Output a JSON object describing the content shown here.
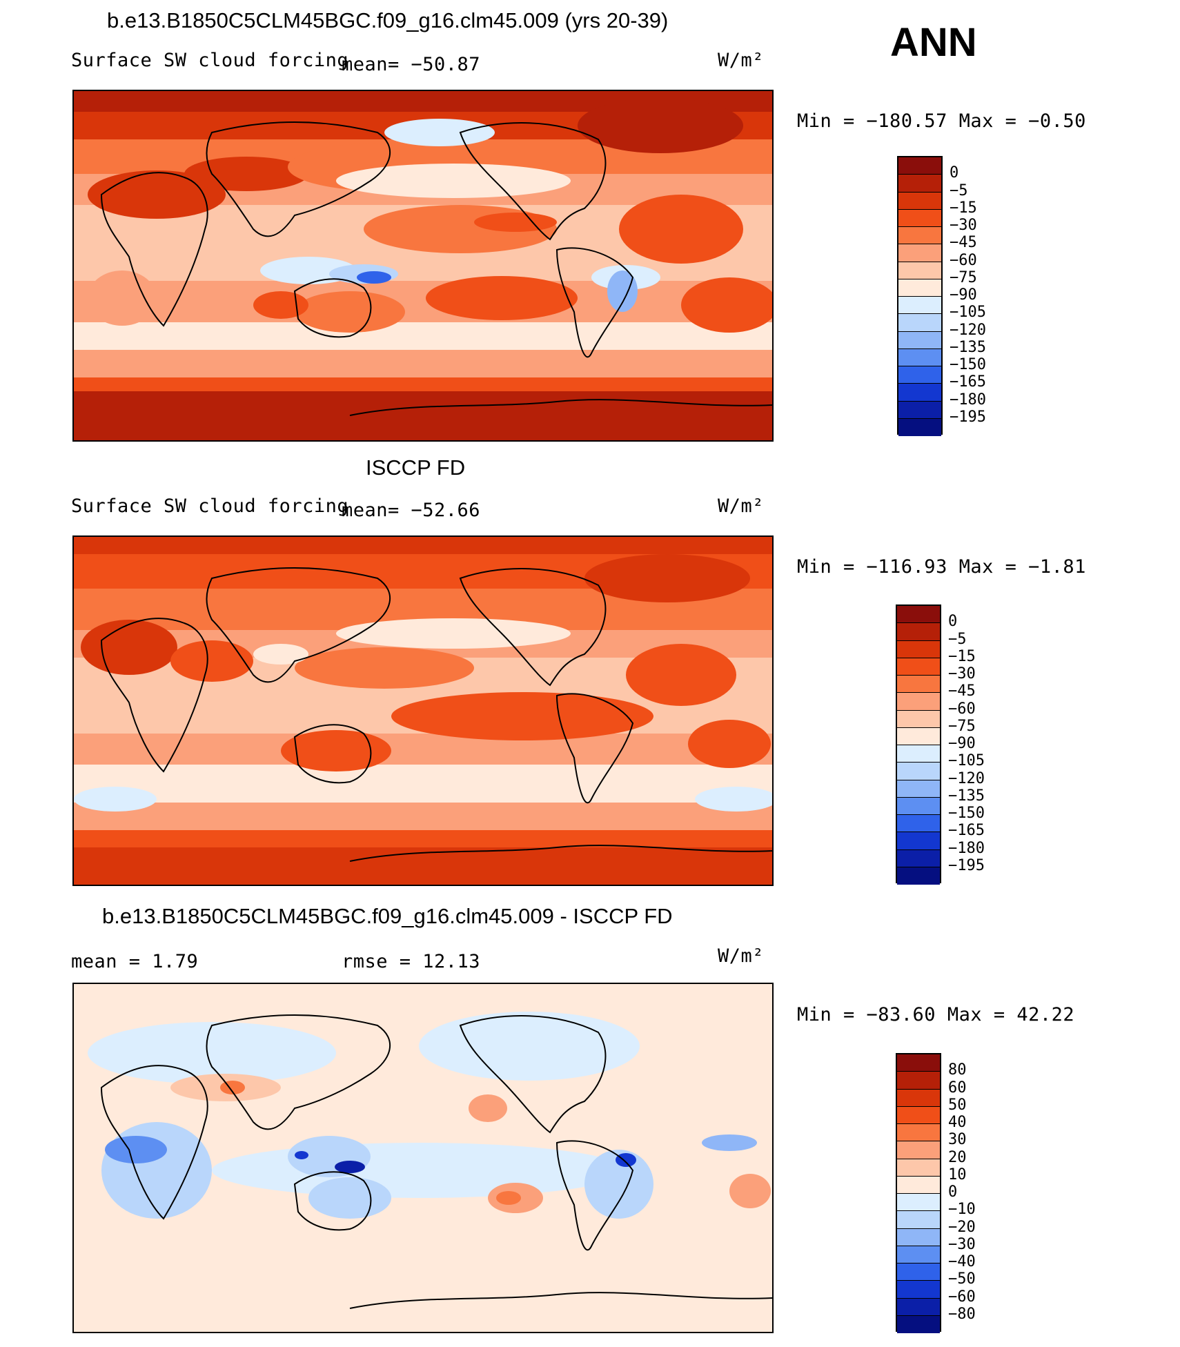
{
  "season": "ANN",
  "units": "W/m²",
  "panels": [
    {
      "title": "b.e13.B1850C5CLM45BGC.f09_g16.clm45.009 (yrs 20-39)",
      "variable": "Surface SW cloud forcing",
      "mean_label": "mean= −50.87",
      "minmax": "Min = −180.57 Max =  −0.50"
    },
    {
      "title": "ISCCP FD",
      "variable": "Surface SW cloud forcing",
      "mean_label": "mean= −52.66",
      "minmax": "Min = −116.93 Max =  −1.81"
    },
    {
      "title": "b.e13.B1850C5CLM45BGC.f09_g16.clm45.009 - ISCCP FD",
      "mean_label": "mean =    1.79",
      "rmse_label": "rmse =   12.13",
      "minmax": "Min = −83.60 Max =  42.22"
    }
  ],
  "colorbar_abs": {
    "labels": [
      "0",
      "−5",
      "−15",
      "−30",
      "−45",
      "−60",
      "−75",
      "−90",
      "−105",
      "−120",
      "−135",
      "−150",
      "−165",
      "−180",
      "−195"
    ],
    "colors": [
      "#8a0e0b",
      "#b52008",
      "#d9360a",
      "#f04f18",
      "#f8763f",
      "#fba07a",
      "#fdc7aa",
      "#ffeadb",
      "#dceefe",
      "#b9d6fb",
      "#8fb6f7",
      "#5d8ff2",
      "#2f62ea",
      "#1337d0",
      "#0b1fa8",
      "#050f80"
    ]
  },
  "colorbar_diff": {
    "labels": [
      "80",
      "60",
      "50",
      "40",
      "30",
      "20",
      "10",
      "0",
      "−10",
      "−20",
      "−30",
      "−40",
      "−50",
      "−60",
      "−80"
    ],
    "colors": [
      "#8a0e0b",
      "#b52008",
      "#d9360a",
      "#f04f18",
      "#f8763f",
      "#fba07a",
      "#fdc7aa",
      "#ffeadb",
      "#dceefe",
      "#b9d6fb",
      "#8fb6f7",
      "#5d8ff2",
      "#2f62ea",
      "#1337d0",
      "#0b1fa8",
      "#050f80"
    ]
  }
}
